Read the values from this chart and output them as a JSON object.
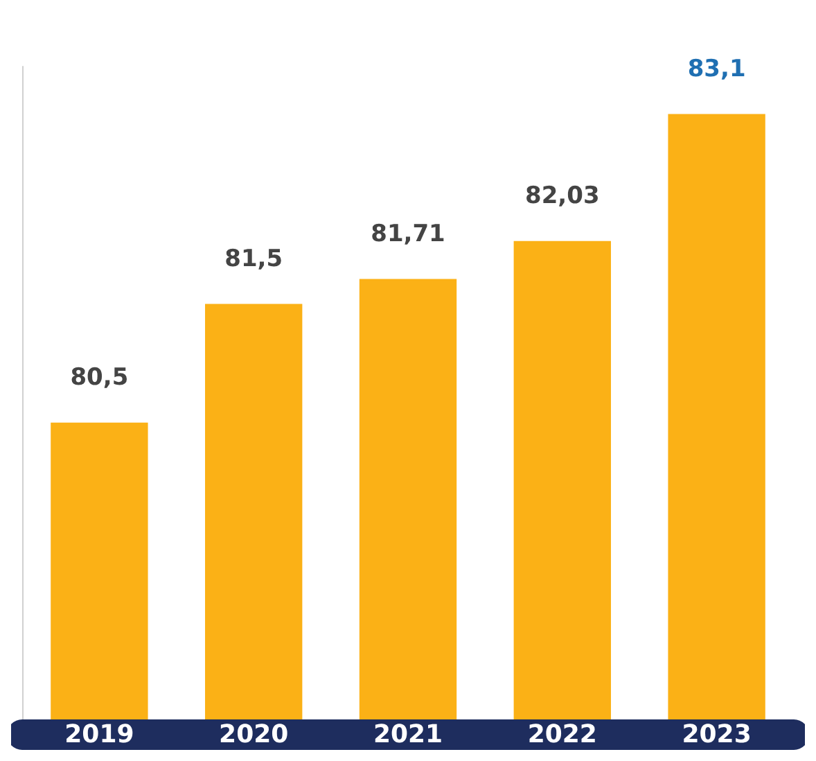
{
  "chart_data": {
    "type": "bar",
    "categories": [
      "2019",
      "2020",
      "2021",
      "2022",
      "2023"
    ],
    "values": [
      80.5,
      81.5,
      81.71,
      82.03,
      83.1
    ],
    "value_labels": [
      "80,5",
      "81,5",
      "81,71",
      "82,03",
      "83,1"
    ],
    "color": "#fbb116",
    "ylim": [
      78,
      83.5
    ],
    "data_labels": true
  }
}
